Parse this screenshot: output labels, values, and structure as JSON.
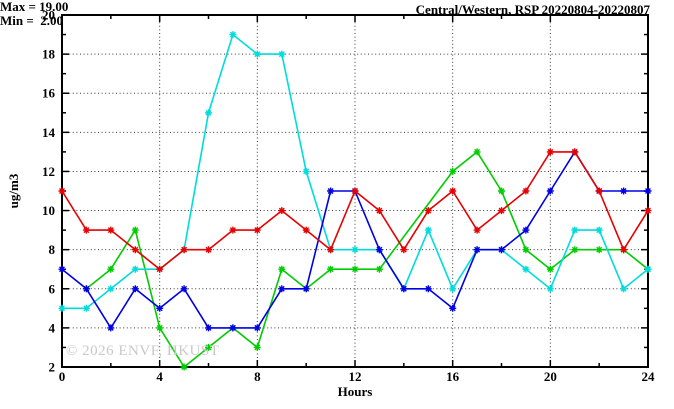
{
  "watermark": "© 2026 ENVF, HKUST",
  "chart_data": {
    "type": "line",
    "title": "Central/Western, RSP 20220804-20220807",
    "xlabel": "Hours",
    "ylabel": "ug/m3",
    "max_label": "Max = 19.00",
    "min_label": "Min =  2.00",
    "stats": {
      "max": 19.0,
      "min": 2.0
    },
    "xlim": [
      0,
      24
    ],
    "ylim": [
      2,
      20
    ],
    "x_tick_labels": [
      0,
      4,
      8,
      12,
      16,
      20,
      24
    ],
    "x_minor_tick_step": 2,
    "y_tick_labels": [
      2,
      4,
      6,
      8,
      10,
      12,
      14,
      16,
      18,
      20
    ],
    "y_minor_tick_step": 1,
    "x_grid": [
      4,
      8,
      12,
      16,
      20
    ],
    "y_grid": [
      4,
      6,
      8,
      10,
      12,
      14,
      16,
      18
    ],
    "grid": true,
    "legend_position": "top-right-inside",
    "marker": "asterisk",
    "x": [
      0,
      1,
      2,
      3,
      4,
      5,
      6,
      7,
      8,
      9,
      10,
      11,
      12,
      13,
      14,
      15,
      16,
      17,
      18,
      19,
      20,
      21,
      22,
      23,
      24
    ],
    "series": [
      {
        "name": "green",
        "color": "#00cc00",
        "values": [
          null,
          6,
          7,
          9,
          4,
          2,
          3,
          4,
          3,
          7,
          6,
          7,
          7,
          7,
          null,
          null,
          12,
          13,
          11,
          8,
          7,
          8,
          8,
          8,
          7
        ]
      },
      {
        "name": "cyan",
        "color": "#00dcdc",
        "values": [
          5,
          5,
          6,
          7,
          7,
          8,
          15,
          19,
          18,
          18,
          12,
          8,
          8,
          8,
          6,
          9,
          6,
          8,
          8,
          7,
          6,
          9,
          9,
          6,
          7
        ]
      },
      {
        "name": "blue",
        "color": "#0000e6",
        "values": [
          7,
          6,
          4,
          6,
          5,
          6,
          4,
          4,
          4,
          6,
          6,
          11,
          11,
          8,
          6,
          6,
          5,
          8,
          8,
          9,
          11,
          13,
          11,
          11,
          11
        ]
      },
      {
        "name": "red",
        "color": "#e60000",
        "values": [
          11,
          9,
          9,
          8,
          7,
          8,
          8,
          9,
          9,
          10,
          9,
          8,
          11,
          10,
          8,
          10,
          11,
          9,
          10,
          11,
          13,
          13,
          11,
          8,
          10
        ]
      }
    ]
  }
}
